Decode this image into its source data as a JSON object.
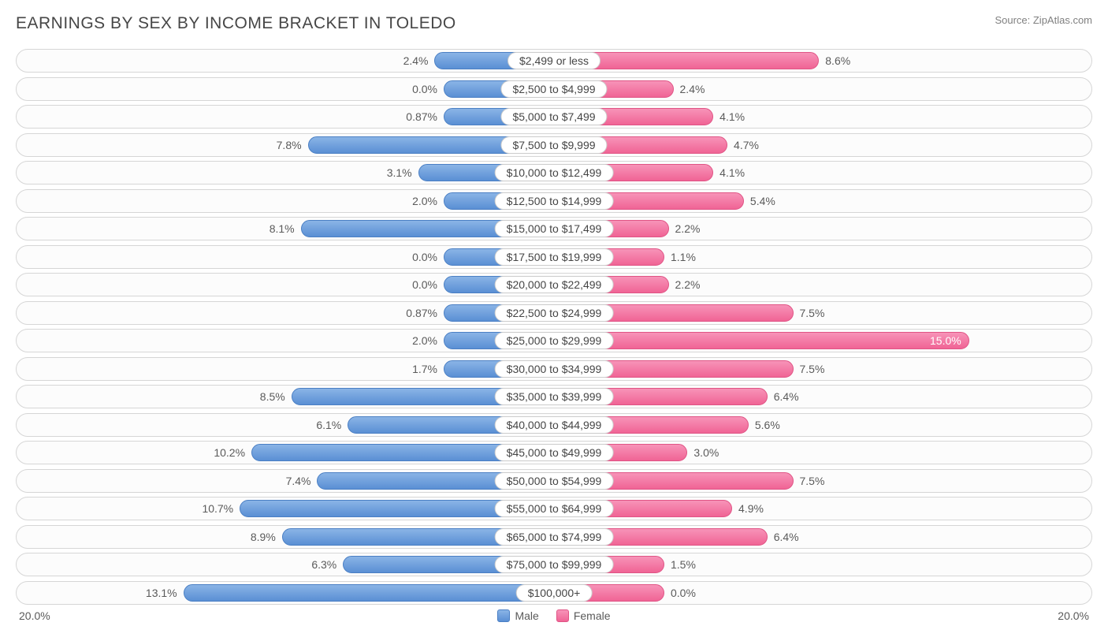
{
  "title": "EARNINGS BY SEX BY INCOME BRACKET IN TOLEDO",
  "source": "Source: ZipAtlas.com",
  "axis_max_pct": 20.0,
  "axis_label_left": "20.0%",
  "axis_label_right": "20.0%",
  "legend_male": "Male",
  "legend_female": "Female",
  "colors": {
    "male_top": "#8ab4e6",
    "male_bottom": "#5a8fd4",
    "male_border": "#4a7fc4",
    "female_top": "#f793b8",
    "female_bottom": "#f06495",
    "female_border": "#e05485",
    "row_border": "#d6d6d6",
    "row_bg": "#fcfcfc",
    "text": "#5a5a5a",
    "title_color": "#474747",
    "source_color": "#808080"
  },
  "rows": [
    {
      "label": "$2,499 or less",
      "male": 2.4,
      "male_str": "2.4%",
      "female": 8.6,
      "female_str": "8.6%"
    },
    {
      "label": "$2,500 to $4,999",
      "male": 0.0,
      "male_str": "0.0%",
      "female": 2.4,
      "female_str": "2.4%"
    },
    {
      "label": "$5,000 to $7,499",
      "male": 0.87,
      "male_str": "0.87%",
      "female": 4.1,
      "female_str": "4.1%"
    },
    {
      "label": "$7,500 to $9,999",
      "male": 7.8,
      "male_str": "7.8%",
      "female": 4.7,
      "female_str": "4.7%"
    },
    {
      "label": "$10,000 to $12,499",
      "male": 3.1,
      "male_str": "3.1%",
      "female": 4.1,
      "female_str": "4.1%"
    },
    {
      "label": "$12,500 to $14,999",
      "male": 2.0,
      "male_str": "2.0%",
      "female": 5.4,
      "female_str": "5.4%"
    },
    {
      "label": "$15,000 to $17,499",
      "male": 8.1,
      "male_str": "8.1%",
      "female": 2.2,
      "female_str": "2.2%"
    },
    {
      "label": "$17,500 to $19,999",
      "male": 0.0,
      "male_str": "0.0%",
      "female": 1.1,
      "female_str": "1.1%"
    },
    {
      "label": "$20,000 to $22,499",
      "male": 0.0,
      "male_str": "0.0%",
      "female": 2.2,
      "female_str": "2.2%"
    },
    {
      "label": "$22,500 to $24,999",
      "male": 0.87,
      "male_str": "0.87%",
      "female": 7.5,
      "female_str": "7.5%"
    },
    {
      "label": "$25,000 to $29,999",
      "male": 2.0,
      "male_str": "2.0%",
      "female": 15.0,
      "female_str": "15.0%"
    },
    {
      "label": "$30,000 to $34,999",
      "male": 1.7,
      "male_str": "1.7%",
      "female": 7.5,
      "female_str": "7.5%"
    },
    {
      "label": "$35,000 to $39,999",
      "male": 8.5,
      "male_str": "8.5%",
      "female": 6.4,
      "female_str": "6.4%"
    },
    {
      "label": "$40,000 to $44,999",
      "male": 6.1,
      "male_str": "6.1%",
      "female": 5.6,
      "female_str": "5.6%"
    },
    {
      "label": "$45,000 to $49,999",
      "male": 10.2,
      "male_str": "10.2%",
      "female": 3.0,
      "female_str": "3.0%"
    },
    {
      "label": "$50,000 to $54,999",
      "male": 7.4,
      "male_str": "7.4%",
      "female": 7.5,
      "female_str": "7.5%"
    },
    {
      "label": "$55,000 to $64,999",
      "male": 10.7,
      "male_str": "10.7%",
      "female": 4.9,
      "female_str": "4.9%"
    },
    {
      "label": "$65,000 to $74,999",
      "male": 8.9,
      "male_str": "8.9%",
      "female": 6.4,
      "female_str": "6.4%"
    },
    {
      "label": "$75,000 to $99,999",
      "male": 6.3,
      "male_str": "6.3%",
      "female": 1.5,
      "female_str": "1.5%"
    },
    {
      "label": "$100,000+",
      "male": 13.1,
      "male_str": "13.1%",
      "female": 0.0,
      "female_str": "0.0%"
    }
  ]
}
